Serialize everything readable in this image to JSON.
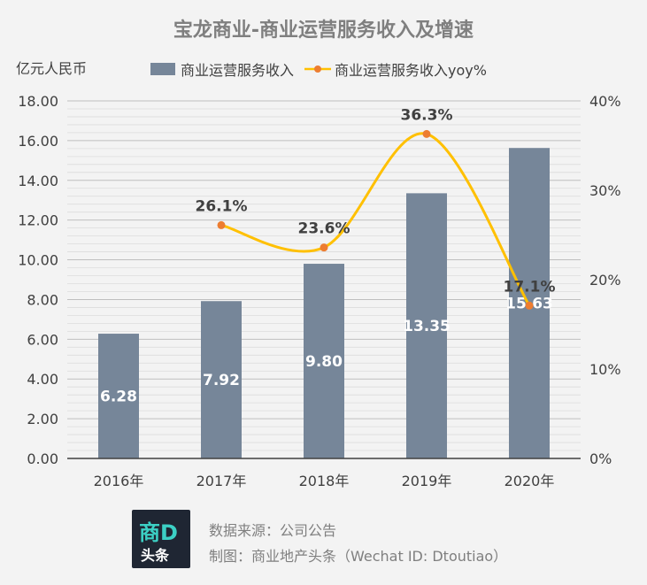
{
  "chart_data": {
    "type": "bar",
    "title": "宝龙商业-商业运营服务收入及增速",
    "y_unit": "亿元人民币",
    "categories": [
      "2016年",
      "2017年",
      "2018年",
      "2019年",
      "2020年"
    ],
    "series": [
      {
        "name": "商业运营服务收入",
        "type": "bar",
        "axis": "left",
        "values": [
          6.28,
          7.92,
          9.8,
          13.35,
          15.63
        ],
        "labels": [
          "6.28",
          "7.92",
          "9.80",
          "13.35",
          "15.63"
        ],
        "color": "#768699"
      },
      {
        "name": "商业运营服务收入yoy%",
        "type": "line",
        "axis": "right",
        "smooth": true,
        "values": [
          null,
          26.1,
          23.6,
          36.3,
          17.1
        ],
        "labels": [
          "",
          "26.1%",
          "23.6%",
          "36.3%",
          "17.1%"
        ],
        "color": "#ffc000",
        "marker_color": "#ed7d31"
      }
    ],
    "y_left": {
      "min": 0,
      "max": 18,
      "ticks": [
        "0.00",
        "2.00",
        "4.00",
        "6.00",
        "8.00",
        "10.00",
        "12.00",
        "14.00",
        "16.00",
        "18.00"
      ]
    },
    "y_right": {
      "min": 0,
      "max": 40,
      "ticks": [
        "0%",
        "10%",
        "20%",
        "30%",
        "40%"
      ]
    },
    "grid": true,
    "legend": "top"
  },
  "footer": {
    "logo_top": "商",
    "logo_top_accent": "D",
    "logo_bottom": "头条",
    "source": "数据来源：公司公告",
    "credit": "制图：商业地产头条（Wechat ID: Dtoutiao）"
  }
}
